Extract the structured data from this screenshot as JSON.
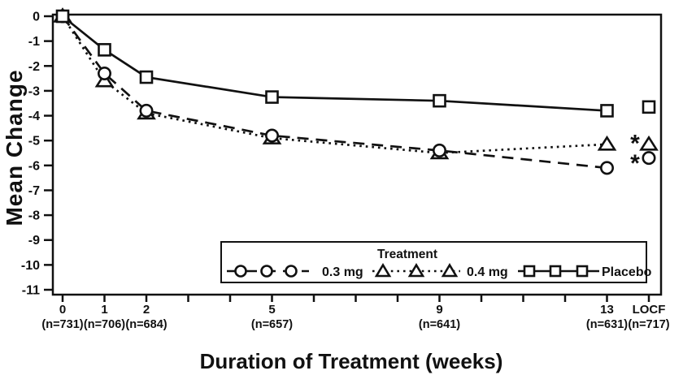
{
  "chart_data": {
    "type": "line",
    "title": "",
    "xlabel": "Duration of Treatment (weeks)",
    "ylabel": "Mean Change",
    "ylim": [
      -11,
      0
    ],
    "yticks": [
      0,
      -1,
      -2,
      -3,
      -4,
      -5,
      -6,
      -7,
      -8,
      -9,
      -10,
      -11
    ],
    "x_tick_weeks": [
      0,
      1,
      2,
      3,
      4,
      5,
      6,
      7,
      8,
      9,
      10,
      11,
      12,
      13
    ],
    "x_extra_category": "LOCF",
    "x_labels": [
      {
        "week": 0,
        "label": "0",
        "n": "(n=731)"
      },
      {
        "week": 1,
        "label": "1",
        "n": "(n=706)"
      },
      {
        "week": 2,
        "label": "2",
        "n": "(n=684)"
      },
      {
        "week": 5,
        "label": "5",
        "n": "(n=657)"
      },
      {
        "week": 9,
        "label": "9",
        "n": "(n=641)"
      },
      {
        "week": 13,
        "label": "13",
        "n": "(n=631)"
      },
      {
        "week": "LOCF",
        "label": "LOCF",
        "n": "(n=717)"
      }
    ],
    "series": [
      {
        "name": "0.4 mg",
        "marker": "triangle",
        "line_style": "dotted",
        "weeks": [
          0,
          1,
          2,
          5,
          9,
          13
        ],
        "values": [
          0,
          -2.6,
          -3.9,
          -4.9,
          -5.5,
          -5.15
        ],
        "locf_value": -5.15,
        "locf_asterisk": true
      },
      {
        "name": "0.3 mg",
        "marker": "circle",
        "line_style": "dashed",
        "weeks": [
          0,
          1,
          2,
          5,
          9,
          13
        ],
        "values": [
          0,
          -2.3,
          -3.8,
          -4.8,
          -5.4,
          -6.1
        ],
        "locf_value": -5.7,
        "locf_asterisk": true
      },
      {
        "name": "Placebo",
        "marker": "square",
        "line_style": "solid",
        "weeks": [
          0,
          1,
          2,
          5,
          9,
          13
        ],
        "values": [
          0,
          -1.35,
          -2.45,
          -3.25,
          -3.4,
          -3.8
        ],
        "locf_value": -3.65,
        "locf_asterisk": false
      }
    ],
    "legend": {
      "title": "Treatment",
      "position": "bottom-right-inside",
      "entries": [
        {
          "label": "0.3 mg",
          "marker": "circle",
          "line_style": "dashed"
        },
        {
          "label": "0.4 mg",
          "marker": "triangle",
          "line_style": "dotted"
        },
        {
          "label": "Placebo",
          "marker": "square",
          "line_style": "solid"
        }
      ]
    },
    "annotations": [
      {
        "text": "*",
        "attached_to": "0.4 mg LOCF"
      },
      {
        "text": "*",
        "attached_to": "0.3 mg LOCF"
      }
    ],
    "grid": false,
    "colors": {
      "ink": "#111111",
      "background": "#ffffff"
    }
  }
}
